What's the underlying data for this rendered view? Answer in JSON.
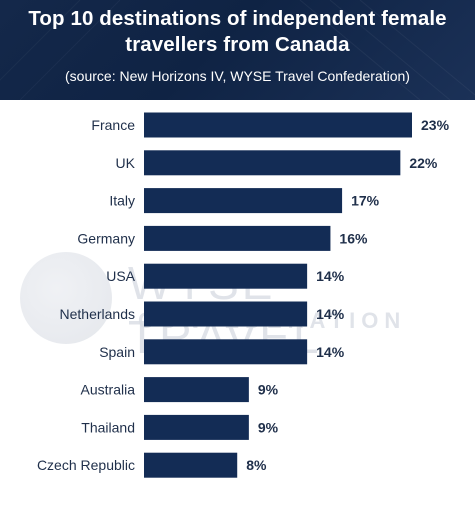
{
  "header": {
    "title_line1": "Top 10 destinations of independent female",
    "title_line2": "travellers from Canada",
    "subtitle": "(source: New Horizons IV, WYSE Travel Confederation)"
  },
  "watermark": {
    "line1": "WYSE TRAVEL",
    "line2": "CONFEDERATION"
  },
  "colors": {
    "header_bg": "#0f2344",
    "bar": "#132c55",
    "text": "#1f2f4a"
  },
  "chart_data": {
    "type": "bar",
    "orientation": "horizontal",
    "title": "Top 10 destinations of independent female travellers from Canada",
    "subtitle": "(source: New Horizons IV, WYSE Travel Confederation)",
    "categories": [
      "France",
      "UK",
      "Italy",
      "Germany",
      "USA",
      "Netherlands",
      "Spain",
      "Australia",
      "Thailand",
      "Czech Republic"
    ],
    "values": [
      23,
      22,
      17,
      16,
      14,
      14,
      14,
      9,
      9,
      8
    ],
    "value_labels": [
      "23%",
      "22%",
      "17%",
      "16%",
      "14%",
      "14%",
      "14%",
      "9%",
      "9%",
      "8%"
    ],
    "unit": "%",
    "xlim": [
      0,
      23
    ],
    "grid": false,
    "legend": "none"
  }
}
